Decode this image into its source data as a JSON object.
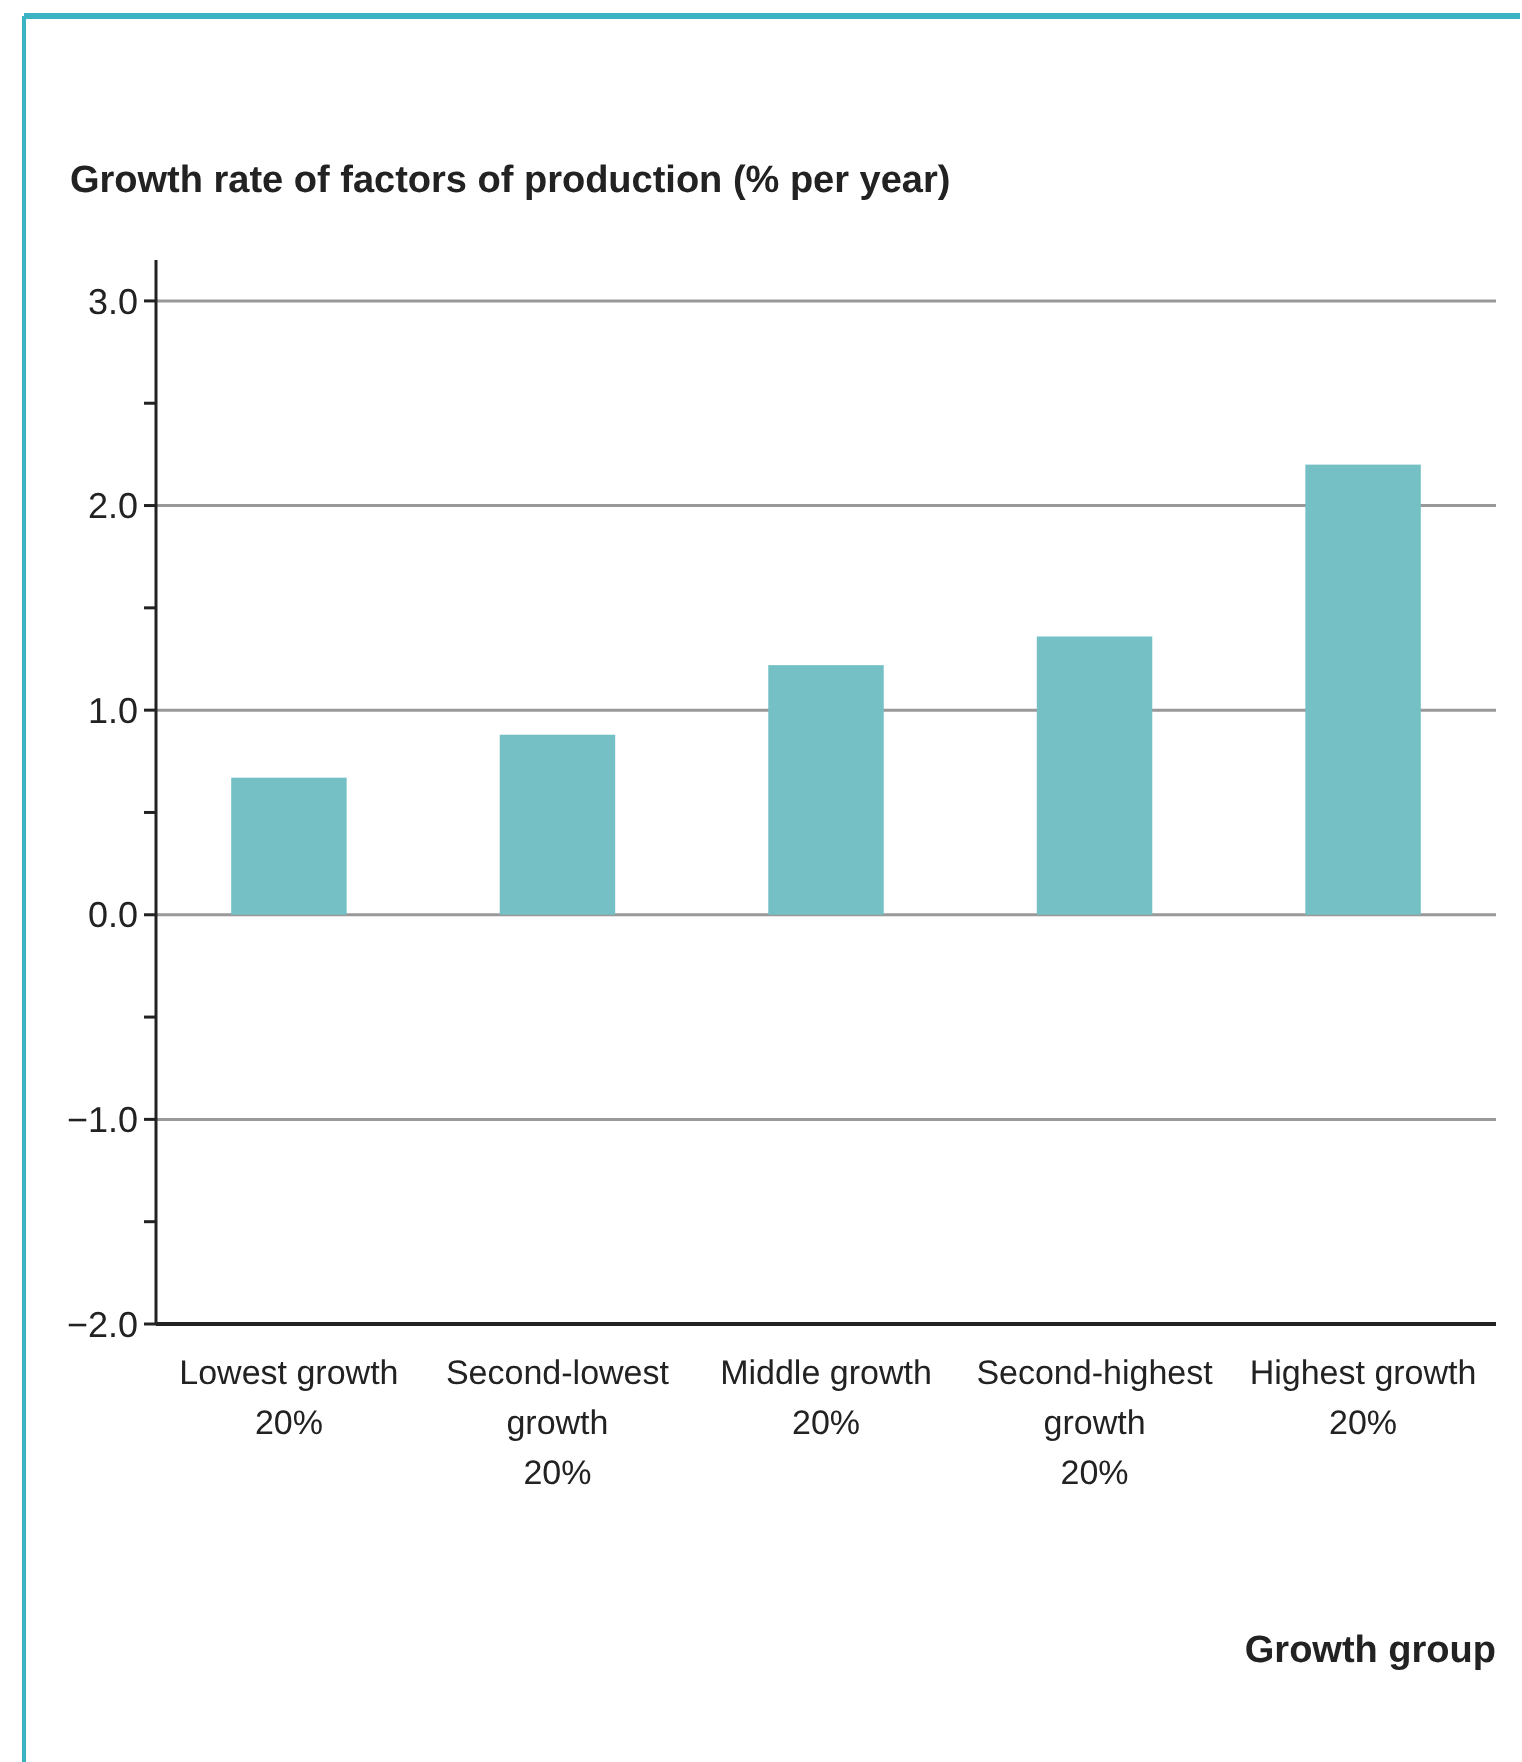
{
  "chart_data": {
    "type": "bar",
    "title": "Growth rate of factors of production (% per year)",
    "xlabel": "Growth group",
    "categories": [
      "Lowest growth\n20%",
      "Second-lowest\ngrowth\n20%",
      "Middle growth\n20%",
      "Second-highest\ngrowth\n20%",
      "Highest growth\n20%"
    ],
    "values": [
      0.67,
      0.88,
      1.22,
      1.36,
      2.2
    ],
    "color": "#74c0c4",
    "ylim": [
      -2,
      3.2
    ],
    "yticks": [
      {
        "value": -2,
        "label": "−2.0"
      },
      {
        "value": -1.5,
        "label": null
      },
      {
        "value": -1,
        "label": "−1.0"
      },
      {
        "value": -0.5,
        "label": null
      },
      {
        "value": 0,
        "label": "0.0"
      },
      {
        "value": 0.5,
        "label": null
      },
      {
        "value": 1,
        "label": "1.0"
      },
      {
        "value": 1.5,
        "label": null
      },
      {
        "value": 2,
        "label": "2.0"
      },
      {
        "value": 2.5,
        "label": null
      },
      {
        "value": 3,
        "label": "3.0"
      }
    ],
    "grid": "y"
  }
}
